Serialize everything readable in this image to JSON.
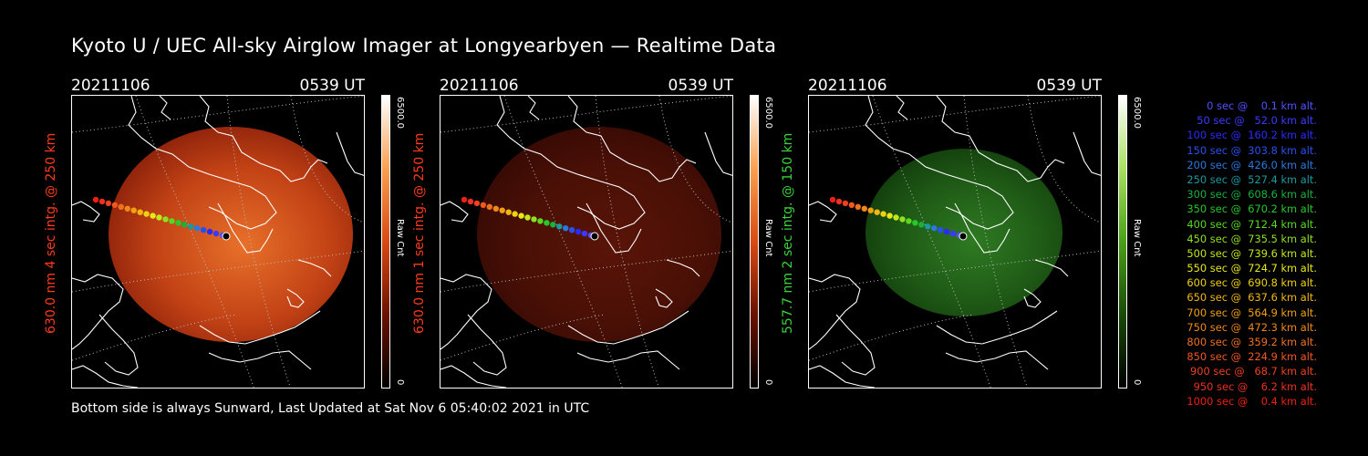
{
  "title": "Kyoto U / UEC All-sky Airglow Imager at Longyearbyen — Realtime Data",
  "panels": [
    {
      "date": "20211106",
      "time": "0539 UT",
      "ylabel": "630.0 nm 4 sec intg. @ 250 km",
      "label_color": "#ff3a1a",
      "scale_max": "6500.0",
      "scale_unit": "Raw Cnt",
      "scale_min": "0",
      "glow_colors": [
        "#e8702a",
        "#c24215",
        "#8a200a"
      ],
      "colormap": [
        "#000000",
        "#6a1200",
        "#d84a14",
        "#f9a050",
        "#ffffff"
      ]
    },
    {
      "date": "20211106",
      "time": "0539 UT",
      "ylabel": "630.0 nm 1 sec intg. @ 250 km",
      "label_color": "#ff3a1a",
      "scale_max": "6500.0",
      "scale_unit": "Raw Cnt",
      "scale_min": "0",
      "glow_colors": [
        "#5a1408",
        "#4a1006",
        "#360a04"
      ],
      "colormap": [
        "#000000",
        "#6a1200",
        "#d84a14",
        "#f9a050",
        "#ffffff"
      ]
    },
    {
      "date": "20211106",
      "time": "0539 UT",
      "ylabel": "557.7 nm 2 sec intg. @ 150 km",
      "label_color": "#3ad23a",
      "scale_max": "6500.0",
      "scale_unit": "Raw Cnt",
      "scale_min": "0",
      "glow_colors": [
        "#2e7a22",
        "#1f5a16",
        "#123d0c"
      ],
      "colormap": [
        "#000000",
        "#1a4a08",
        "#4aa018",
        "#a8e060",
        "#ffffff"
      ]
    }
  ],
  "legend": [
    {
      "text": "   0 sec @    0.1 km alt.",
      "color": "#5050ff"
    },
    {
      "text": "  50 sec @   52.0 km alt.",
      "color": "#3a3aff"
    },
    {
      "text": " 100 sec @  160.2 km alt.",
      "color": "#2a2aff"
    },
    {
      "text": " 150 sec @  303.8 km alt.",
      "color": "#2850f0"
    },
    {
      "text": " 200 sec @  426.0 km alt.",
      "color": "#2a78e0"
    },
    {
      "text": " 250 sec @  527.4 km alt.",
      "color": "#1a9aa0"
    },
    {
      "text": " 300 sec @  608.6 km alt.",
      "color": "#18b040"
    },
    {
      "text": " 350 sec @  670.2 km alt.",
      "color": "#28c828"
    },
    {
      "text": " 400 sec @  712.4 km alt.",
      "color": "#58d820"
    },
    {
      "text": " 450 sec @  735.5 km alt.",
      "color": "#90e020"
    },
    {
      "text": " 500 sec @  739.6 km alt.",
      "color": "#c0e818"
    },
    {
      "text": " 550 sec @  724.7 km alt.",
      "color": "#e8e818"
    },
    {
      "text": " 600 sec @  690.8 km alt.",
      "color": "#f0d010"
    },
    {
      "text": " 650 sec @  637.6 km alt.",
      "color": "#f0b810"
    },
    {
      "text": " 700 sec @  564.9 km alt.",
      "color": "#f0a010"
    },
    {
      "text": " 750 sec @  472.3 km alt.",
      "color": "#f08818"
    },
    {
      "text": " 800 sec @  359.2 km alt.",
      "color": "#f07020"
    },
    {
      "text": " 850 sec @  224.9 km alt.",
      "color": "#f05820"
    },
    {
      "text": " 900 sec @   68.7 km alt.",
      "color": "#f04020"
    },
    {
      "text": " 950 sec @    6.2 km alt.",
      "color": "#f03020"
    },
    {
      "text": "1000 sec @    0.4 km alt.",
      "color": "#f02010"
    }
  ],
  "footer": "Bottom side is always Sunward, Last Updated at Sat Nov  6 05:40:02 2021 in UTC"
}
